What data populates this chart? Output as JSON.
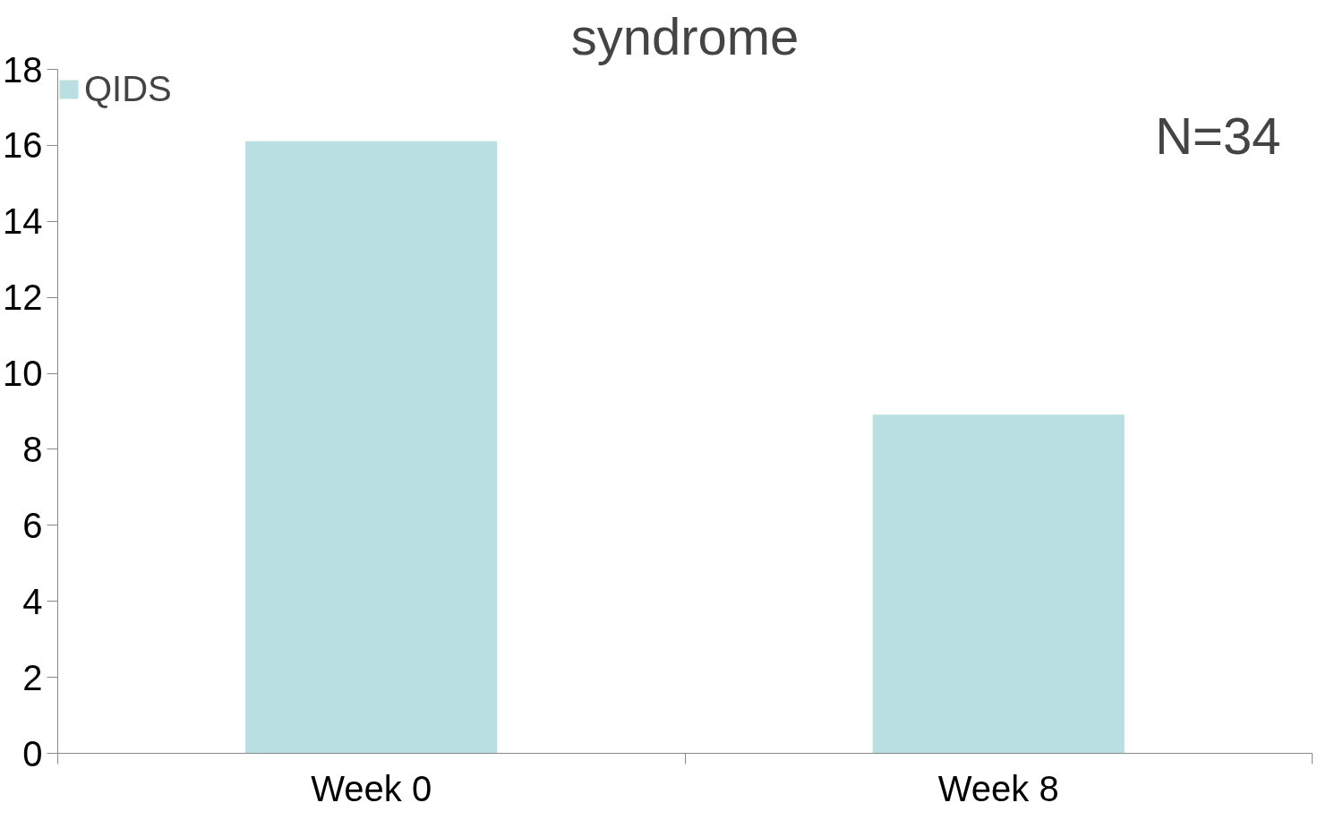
{
  "chart_data": {
    "type": "bar",
    "title": "syndrome",
    "categories": [
      "Week 0",
      "Week 8"
    ],
    "series": [
      {
        "name": "QIDS",
        "color": "#b9dfe2",
        "values": [
          16.1,
          8.9
        ]
      }
    ],
    "ylim": [
      0,
      18
    ],
    "yticks": [
      0,
      2,
      4,
      6,
      8,
      10,
      12,
      14,
      16,
      18
    ],
    "grid": false,
    "legend": "top left",
    "annotations": [
      "N=34"
    ]
  }
}
